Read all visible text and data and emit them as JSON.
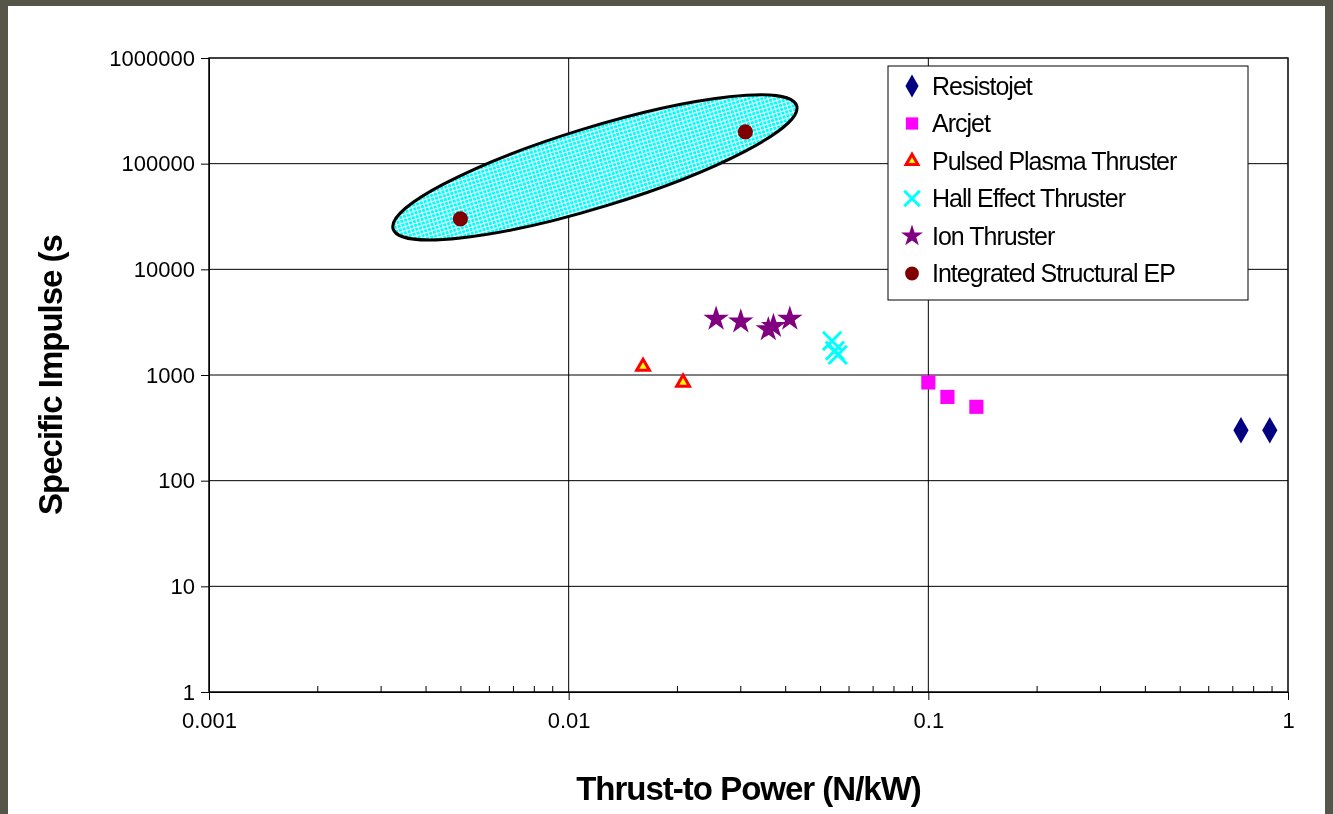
{
  "chart_data": {
    "type": "scatter",
    "xlabel": "Thrust-to Power (N/kW)",
    "ylabel": "Specific Impulse (s",
    "log": "xy",
    "grid": true,
    "legend": "top right",
    "xlim": [
      0.001,
      1
    ],
    "ylim": [
      1,
      1000000
    ],
    "xticks": [
      0.001,
      {
        "value": 0.002,
        "label": null
      },
      {
        "value": 0.003,
        "label": null
      },
      {
        "value": 0.004,
        "label": null
      },
      {
        "value": 0.005,
        "label": null
      },
      {
        "value": 0.006,
        "label": null
      },
      {
        "value": 0.007,
        "label": null
      },
      {
        "value": 0.008,
        "label": null
      },
      {
        "value": 0.009,
        "label": null
      },
      0.01,
      {
        "value": 0.02,
        "label": null
      },
      {
        "value": 0.03,
        "label": null
      },
      {
        "value": 0.04,
        "label": null
      },
      {
        "value": 0.05,
        "label": null
      },
      {
        "value": 0.06,
        "label": null
      },
      {
        "value": 0.07,
        "label": null
      },
      {
        "value": 0.08,
        "label": null
      },
      {
        "value": 0.09,
        "label": null
      },
      0.1,
      {
        "value": 0.2,
        "label": null
      },
      {
        "value": 0.3,
        "label": null
      },
      {
        "value": 0.4,
        "label": null
      },
      {
        "value": 0.5,
        "label": null
      },
      {
        "value": 0.6,
        "label": null
      },
      {
        "value": 0.7,
        "label": null
      },
      {
        "value": 0.8,
        "label": null
      },
      {
        "value": 0.9,
        "label": null
      },
      1
    ],
    "yticks": [
      1,
      10,
      100,
      1000,
      10000,
      100000,
      1000000
    ],
    "series": [
      {
        "name": "Resistojet",
        "color": "#000080",
        "marker": "diamond",
        "x": [
          0.74,
          0.89
        ],
        "values": [
          300,
          300
        ]
      },
      {
        "name": "Arcjet",
        "color": "#ff00ff",
        "marker": "square",
        "x": [
          0.1,
          0.113,
          0.133,
          0.136
        ],
        "values": [
          850,
          620,
          null,
          500
        ]
      },
      {
        "name": "Pulsed Plasma Thruster",
        "color": "#ff0000",
        "marker": "triangle",
        "x": [
          0.0161,
          0.0208
        ],
        "values": [
          1200,
          850
        ]
      },
      {
        "name": "Hall Effect Thruster",
        "color": "#00ffff",
        "marker": "cross",
        "x": [
          0.054,
          0.055,
          0.056
        ],
        "values": [
          2100,
          1700,
          1550
        ]
      },
      {
        "name": "Ion Thruster",
        "color": "#800080",
        "marker": "star",
        "x": [
          0.0257,
          0.0301,
          0.0359,
          0.0371,
          0.0412
        ],
        "values": [
          3400,
          3200,
          2700,
          2900,
          3400
        ]
      },
      {
        "name": "Integrated Structural EP",
        "color": "#800000",
        "marker": "circle",
        "x": [
          0.005,
          0.031
        ],
        "values": [
          30000,
          200000
        ]
      }
    ]
  }
}
